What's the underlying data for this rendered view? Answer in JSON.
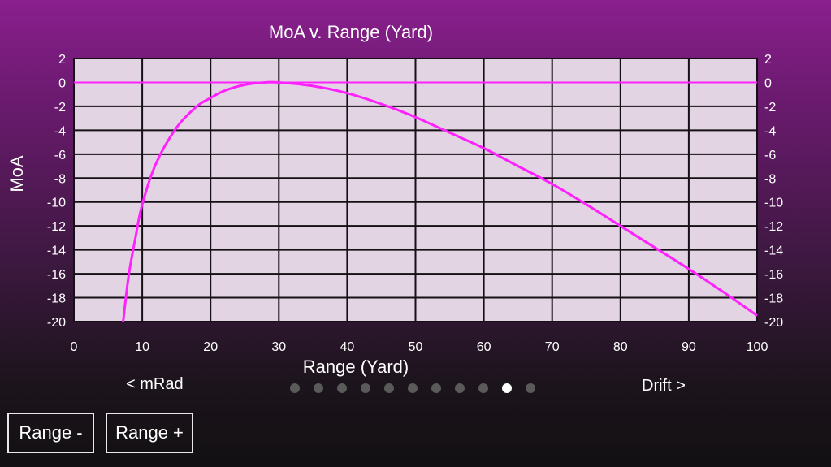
{
  "chart_data": {
    "type": "line",
    "title": "MoA v. Range (Yard)",
    "xlabel": "Range (Yard)",
    "ylabel": "MoA",
    "xlim": [
      0,
      100
    ],
    "ylim": [
      -20,
      2
    ],
    "x_ticks": [
      0,
      10,
      20,
      30,
      40,
      50,
      60,
      70,
      80,
      90,
      100
    ],
    "y_ticks": [
      2,
      0,
      -2,
      -4,
      -6,
      -8,
      -10,
      -12,
      -14,
      -16,
      -18,
      -20
    ],
    "grid": true,
    "secondary_y_axis": true,
    "reference_line": {
      "y": 0
    },
    "series": [
      {
        "color": "#ff22ff",
        "x": [
          7.2,
          8,
          9,
          10,
          12,
          15,
          18,
          20,
          22,
          25,
          28,
          30,
          35,
          40,
          45,
          50,
          55,
          60,
          65,
          70,
          75,
          80,
          85,
          90,
          95,
          100
        ],
        "y": [
          -20,
          -16.2,
          -13,
          -10.2,
          -6.8,
          -3.8,
          -2.0,
          -1.3,
          -0.7,
          -0.2,
          0,
          0,
          -0.3,
          -0.9,
          -1.8,
          -2.9,
          -4.2,
          -5.5,
          -7.0,
          -8.5,
          -10.2,
          -12.0,
          -13.8,
          -15.6,
          -17.5,
          -19.5
        ]
      }
    ]
  },
  "colors": {
    "plot_background": "#e2d4e2",
    "grid_line": "#151015",
    "series_line": "#ff22ff",
    "zero_line": "#ff22ff"
  },
  "nav": {
    "prev_label": "< mRad",
    "next_label": "Drift >"
  },
  "pager": {
    "total_pages": 11,
    "current_page": 10
  },
  "buttons": {
    "range_minus": "Range -",
    "range_plus": "Range +"
  }
}
